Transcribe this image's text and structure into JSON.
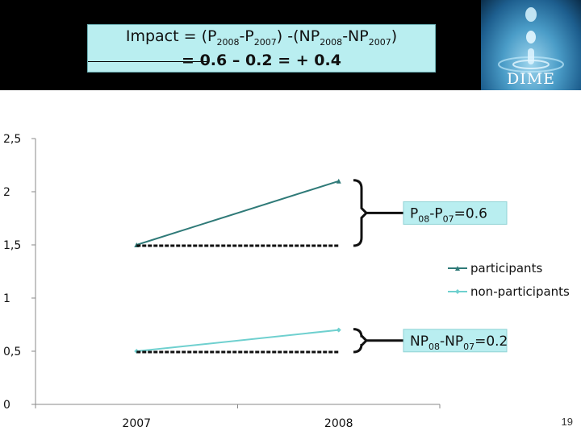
{
  "header": {
    "formula_line1_parts": [
      "Impact = (P",
      "2008",
      "-P",
      "2007",
      ") -(NP",
      "2008",
      "-NP",
      "2007",
      ")"
    ],
    "formula_line2": "= 0.6 – 0.2 = + 0.4",
    "logo_text": "DIME",
    "box_color": "#b9eef0"
  },
  "page_number": "19",
  "chart_data": {
    "type": "line",
    "categories": [
      "2007",
      "2008"
    ],
    "ylim": [
      0,
      2.5
    ],
    "yticks": [
      "0",
      "0,5",
      "1",
      "1,5",
      "2",
      "2,5"
    ],
    "series": [
      {
        "name": "participants",
        "values": [
          1.5,
          2.1
        ],
        "color": "#2f7a78",
        "marker": "triangle"
      },
      {
        "name": "non-participants",
        "values": [
          0.5,
          0.7
        ],
        "color": "#6fd0cf",
        "marker": "diamond"
      }
    ],
    "annotations": [
      {
        "label_parts": [
          "P",
          "08",
          "-P",
          "07",
          "=0.6"
        ],
        "series": 0
      },
      {
        "label_parts": [
          "NP",
          "08",
          "-NP",
          "07",
          "=0.2"
        ],
        "series": 1
      }
    ],
    "legend_position": "right",
    "grid": false
  }
}
